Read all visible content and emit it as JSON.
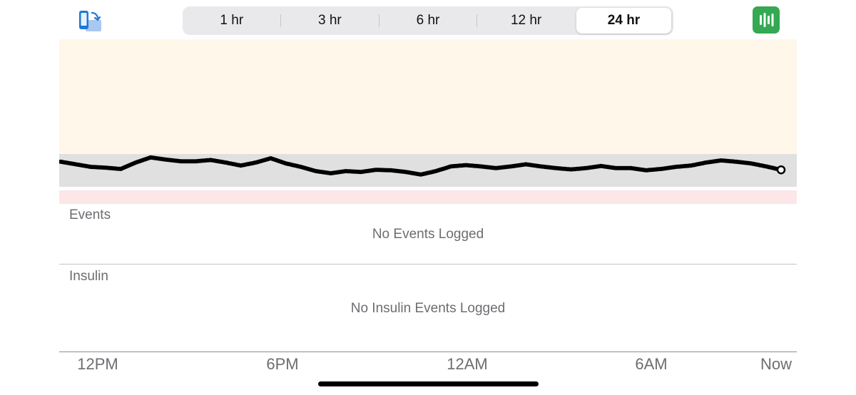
{
  "toolbar": {
    "rotate_icon": "rotate-device-icon",
    "stats_icon": "waveform-icon",
    "stats_color": "#34a853",
    "ranges": [
      "1 hr",
      "3 hr",
      "6 hr",
      "12 hr",
      "24 hr"
    ],
    "selected_range": "24 hr"
  },
  "chart_data": {
    "type": "scatter",
    "title": "",
    "xlabel": "",
    "ylabel": "",
    "x_ticks": [
      "12PM",
      "6PM",
      "12AM",
      "6AM",
      "Now"
    ],
    "bands": [
      {
        "name": "high",
        "color": "#fff7ea"
      },
      {
        "name": "target",
        "color": "#e0e0e0"
      },
      {
        "name": "low",
        "color": "#fde6e8"
      }
    ],
    "ylim": [
      0,
      1
    ],
    "series": [
      {
        "color": "#000000",
        "x": [
          0,
          0.5,
          1,
          1.5,
          2,
          2.5,
          3,
          3.5,
          4,
          4.5,
          5,
          5.5,
          6,
          6.5,
          7,
          7.5,
          8,
          8.5,
          9,
          9.5,
          10,
          10.5,
          11,
          11.5,
          12,
          12.5,
          13,
          13.5,
          14,
          14.5,
          15,
          15.5,
          16,
          16.5,
          17,
          17.5,
          18,
          18.5,
          19,
          19.5,
          20,
          20.5,
          21,
          21.5,
          22,
          22.5,
          23,
          23.5,
          24
        ],
        "y": [
          0.72,
          0.66,
          0.6,
          0.58,
          0.55,
          0.7,
          0.82,
          0.77,
          0.73,
          0.73,
          0.76,
          0.7,
          0.63,
          0.7,
          0.8,
          0.68,
          0.6,
          0.5,
          0.45,
          0.5,
          0.48,
          0.53,
          0.52,
          0.48,
          0.42,
          0.5,
          0.61,
          0.64,
          0.61,
          0.57,
          0.61,
          0.66,
          0.61,
          0.57,
          0.54,
          0.57,
          0.62,
          0.57,
          0.57,
          0.52,
          0.55,
          0.6,
          0.63,
          0.7,
          0.75,
          0.72,
          0.68,
          0.61,
          0.53
        ]
      }
    ]
  },
  "events": {
    "title": "Events",
    "empty": "No Events Logged"
  },
  "insulin": {
    "title": "Insulin",
    "empty": "No Insulin Events Logged"
  },
  "xaxis": {
    "labels": [
      "12PM",
      "6PM",
      "12AM",
      "6AM",
      "Now"
    ]
  }
}
